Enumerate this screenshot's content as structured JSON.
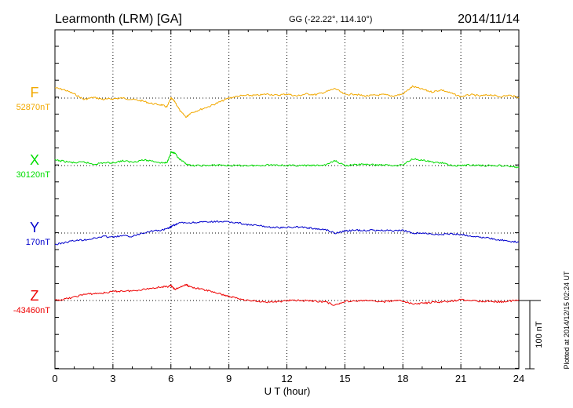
{
  "chart_data": {
    "type": "line",
    "title": "Learmonth (LRM)  [GA]",
    "coords": "GG (-22.22°, 114.10°)",
    "date": "2014/11/14",
    "xlabel": "U T (hour)",
    "xlim": [
      0,
      24
    ],
    "x_ticks": [
      "0",
      "3",
      "6",
      "9",
      "12",
      "15",
      "18",
      "21",
      "24"
    ],
    "scale_bar_label": "100 nT",
    "scale_bar_value_nT": 100,
    "plotted_note": "Plotted at 2014/12/15 02:24 UT",
    "series": [
      {
        "name": "F",
        "baseline_label": "52870nT",
        "baseline": 52870,
        "color": "#f2a900",
        "x": [
          0,
          0.5,
          1,
          1.5,
          2,
          2.5,
          3,
          3.5,
          4,
          4.5,
          5,
          5.5,
          5.8,
          6.0,
          6.2,
          6.5,
          6.8,
          7,
          7.5,
          8,
          8.5,
          9,
          9.5,
          10,
          10.5,
          11,
          11.5,
          12,
          12.5,
          13,
          13.5,
          14,
          14.5,
          15,
          15.5,
          16,
          16.5,
          17,
          17.5,
          18,
          18.5,
          19,
          19.5,
          20,
          20.5,
          21,
          21.5,
          22,
          22.5,
          23,
          23.5,
          24
        ],
        "values": [
          52885,
          52882,
          52876,
          52868,
          52871,
          52868,
          52869,
          52870,
          52868,
          52866,
          52862,
          52860,
          52857,
          52870,
          52865,
          52850,
          52842,
          52848,
          52853,
          52858,
          52864,
          52870,
          52873,
          52874,
          52874,
          52876,
          52874,
          52876,
          52873,
          52876,
          52875,
          52879,
          52884,
          52875,
          52876,
          52873,
          52874,
          52875,
          52873,
          52876,
          52887,
          52883,
          52879,
          52882,
          52877,
          52872,
          52875,
          52873,
          52875,
          52872,
          52874,
          52871
        ]
      },
      {
        "name": "X",
        "baseline_label": "30120nT",
        "baseline": 30120,
        "color": "#00dd00",
        "x": [
          0,
          0.5,
          1,
          1.5,
          2,
          2.5,
          3,
          3.5,
          4,
          4.5,
          5,
          5.5,
          5.8,
          6.0,
          6.2,
          6.4,
          6.7,
          7,
          7.5,
          8,
          8.5,
          9,
          9.5,
          10,
          10.5,
          11,
          11.5,
          12,
          12.5,
          13,
          13.5,
          14,
          14.5,
          15,
          15.5,
          16,
          16.5,
          17,
          17.5,
          18,
          18.5,
          19,
          19.5,
          20,
          20.5,
          21,
          21.5,
          22,
          22.5,
          23,
          23.5,
          24
        ],
        "values": [
          30128,
          30126,
          30124,
          30125,
          30122,
          30124,
          30124,
          30127,
          30125,
          30128,
          30127,
          30124,
          30124,
          30140,
          30138,
          30130,
          30124,
          30120,
          30120,
          30120,
          30121,
          30120,
          30120,
          30120,
          30120,
          30121,
          30121,
          30120,
          30120,
          30120,
          30120,
          30121,
          30127,
          30120,
          30121,
          30122,
          30121,
          30121,
          30120,
          30121,
          30130,
          30128,
          30125,
          30124,
          30120,
          30120,
          30121,
          30120,
          30120,
          30120,
          30119,
          30117
        ]
      },
      {
        "name": "Y",
        "baseline_label": "170nT",
        "baseline": 170,
        "color": "#0000cc",
        "x": [
          0,
          0.5,
          1,
          1.5,
          2,
          2.5,
          3,
          3.5,
          4,
          4.5,
          5,
          5.5,
          5.8,
          6.0,
          6.2,
          6.5,
          7,
          7.5,
          8,
          8.5,
          9,
          9.5,
          10,
          10.5,
          11,
          11.5,
          12,
          12.5,
          13,
          13.5,
          14,
          14.5,
          15,
          15.5,
          16,
          16.5,
          17,
          17.5,
          18,
          18.5,
          19,
          19.5,
          20,
          20.5,
          21,
          21.5,
          22,
          22.5,
          23,
          23.5,
          24
        ],
        "values": [
          153,
          156,
          159,
          160,
          162,
          165,
          164,
          166,
          165,
          170,
          173,
          174,
          176,
          179,
          182,
          185,
          185,
          186,
          186,
          187,
          186,
          185,
          182,
          181,
          179,
          178,
          178,
          179,
          178,
          176,
          175,
          170,
          173,
          174,
          174,
          174,
          174,
          173,
          174,
          170,
          170,
          168,
          168,
          169,
          168,
          166,
          164,
          162,
          160,
          158,
          157
        ]
      },
      {
        "name": "Z",
        "baseline_label": "-43460nT",
        "baseline": -43460,
        "color": "#ee0000",
        "x": [
          0,
          0.5,
          1,
          1.5,
          2,
          2.5,
          3,
          3.5,
          4,
          4.5,
          5,
          5.5,
          5.8,
          6.0,
          6.2,
          6.5,
          6.8,
          7,
          7.5,
          8,
          8.5,
          9,
          9.5,
          10,
          10.5,
          11,
          11.5,
          12,
          12.5,
          13,
          13.5,
          14,
          14.5,
          15,
          15.5,
          16,
          16.5,
          17,
          17.5,
          18,
          18.5,
          19,
          19.5,
          20,
          20.5,
          21,
          21.5,
          22,
          22.5,
          23,
          23.5,
          24
        ],
        "values": [
          -43460,
          -43458,
          -43455,
          -43451,
          -43450,
          -43449,
          -43447,
          -43446,
          -43446,
          -43444,
          -43442,
          -43440,
          -43440,
          -43438,
          -43444,
          -43440,
          -43437,
          -43440,
          -43443,
          -43446,
          -43450,
          -43454,
          -43457,
          -43460,
          -43461,
          -43462,
          -43462,
          -43460,
          -43460,
          -43460,
          -43461,
          -43462,
          -43467,
          -43461,
          -43461,
          -43460,
          -43461,
          -43462,
          -43460,
          -43461,
          -43465,
          -43464,
          -43463,
          -43462,
          -43461,
          -43459,
          -43460,
          -43461,
          -43461,
          -43462,
          -43461,
          -43459
        ]
      }
    ]
  }
}
